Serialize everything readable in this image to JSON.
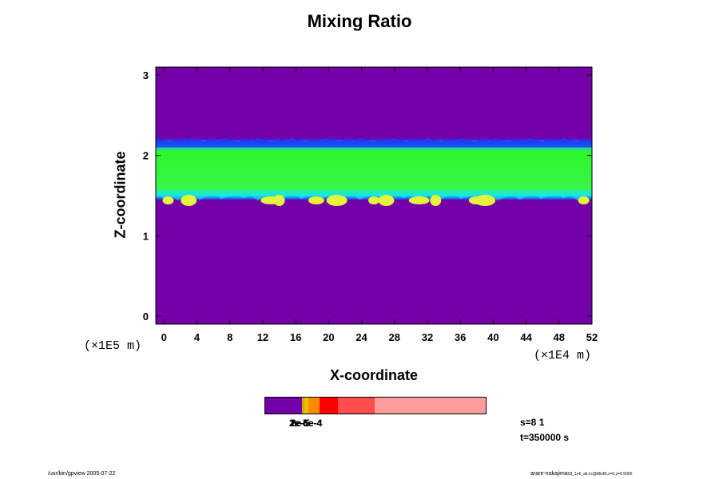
{
  "chart_data": {
    "type": "heatmap",
    "title": "Mixing Ratio",
    "xlabel": "X-coordinate",
    "ylabel": "Z-coordinate",
    "x_unit": "(×1E4 m)",
    "y_unit": "(×1E5 m)",
    "xlim": [
      -1,
      52
    ],
    "ylim": [
      -0.1,
      3.1
    ],
    "x_ticks": [
      "0",
      "4",
      "8",
      "12",
      "16",
      "20",
      "24",
      "28",
      "32",
      "36",
      "40",
      "44",
      "48",
      "52"
    ],
    "y_ticks": [
      "0",
      "1",
      "2",
      "3"
    ],
    "background_color": "#7400a8",
    "layer": {
      "z_bottom": 1.45,
      "z_top": 2.2,
      "blue_edge_color": "#1b3cf0",
      "cyan_edge_color": "#18e8e0",
      "core_color": "#2cf72c",
      "hotspot_color": "#e6f23c",
      "hotspot_x": [
        0.5,
        3,
        13,
        14,
        18.5,
        21,
        25.5,
        27,
        31,
        33,
        38,
        39,
        51
      ]
    },
    "colorbar": {
      "colors": [
        "#7400a8",
        "#d8a800",
        "#e8c000",
        "#ff8a00",
        "#ff0000",
        "#ff4c4c",
        "#ff9c9c"
      ],
      "label": "2e-5e-4",
      "overprint_labels": [
        "1e-6",
        "2e-5",
        "5e-4"
      ]
    }
  },
  "info": {
    "s_value": "s=8 1",
    "time": "t=350000 s",
    "footer_left": "/usr/bin/gpview 2005-07-22",
    "footer_right": "arare-nakajima",
    "footer_right_small": "03_1e6_all.nc@MixRt,x=0,z=0.5000"
  }
}
